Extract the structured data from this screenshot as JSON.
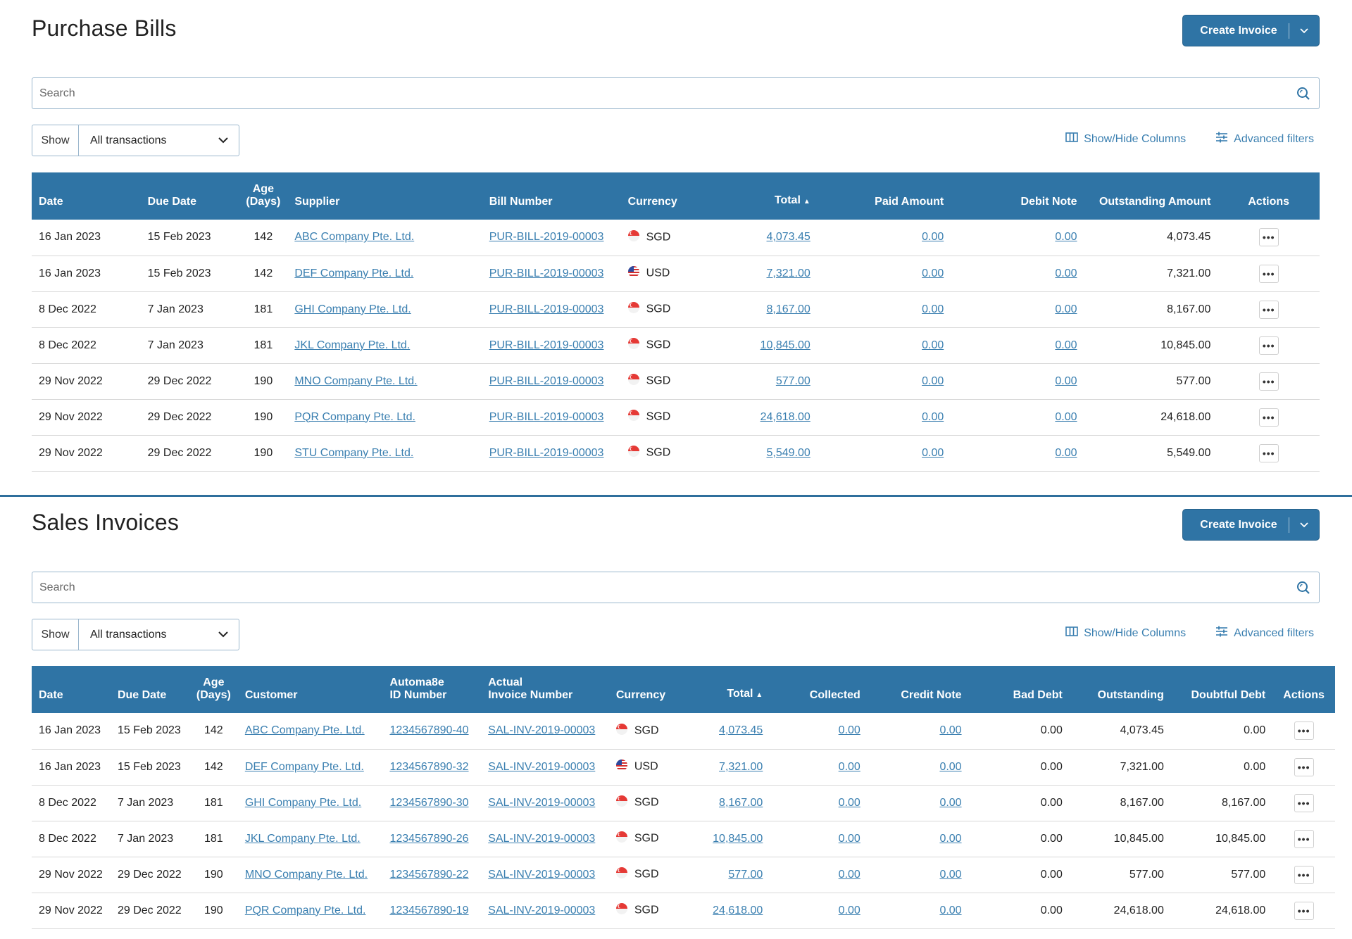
{
  "bills": {
    "title": "Purchase Bills",
    "create_label": "Create Invoice",
    "search_placeholder": "Search",
    "show_label": "Show",
    "show_value": "All transactions",
    "show_hide_label": "Show/Hide Columns",
    "advanced_label": "Advanced filters",
    "headers": {
      "date": "Date",
      "due": "Due Date",
      "age1": "Age",
      "age2": "(Days)",
      "supplier": "Supplier",
      "bill": "Bill Number",
      "currency": "Currency",
      "total": "Total",
      "paid": "Paid Amount",
      "debit": "Debit Note",
      "outstanding": "Outstanding Amount",
      "actions": "Actions"
    },
    "rows": [
      {
        "date": "16 Jan 2023",
        "due": "15 Feb 2023",
        "age": "142",
        "supplier": "ABC Company Pte. Ltd.",
        "bill": "PUR-BILL-2019-00003",
        "currency": "SGD",
        "total": "4,073.45",
        "paid": "0.00",
        "debit": "0.00",
        "outstanding": "4,073.45"
      },
      {
        "date": "16 Jan 2023",
        "due": "15 Feb 2023",
        "age": "142",
        "supplier": "DEF Company Pte. Ltd.",
        "bill": "PUR-BILL-2019-00003",
        "currency": "USD",
        "total": "7,321.00",
        "paid": "0.00",
        "debit": "0.00",
        "outstanding": "7,321.00"
      },
      {
        "date": "8 Dec 2022",
        "due": "7 Jan 2023",
        "age": "181",
        "supplier": "GHI Company Pte. Ltd.",
        "bill": "PUR-BILL-2019-00003",
        "currency": "SGD",
        "total": "8,167.00",
        "paid": "0.00",
        "debit": "0.00",
        "outstanding": "8,167.00"
      },
      {
        "date": "8 Dec 2022",
        "due": "7 Jan 2023",
        "age": "181",
        "supplier": "JKL Company Pte. Ltd.",
        "bill": "PUR-BILL-2019-00003",
        "currency": "SGD",
        "total": "10,845.00",
        "paid": "0.00",
        "debit": "0.00",
        "outstanding": "10,845.00"
      },
      {
        "date": "29 Nov 2022",
        "due": "29 Dec 2022",
        "age": "190",
        "supplier": "MNO Company Pte. Ltd.",
        "bill": "PUR-BILL-2019-00003",
        "currency": "SGD",
        "total": "577.00",
        "paid": "0.00",
        "debit": "0.00",
        "outstanding": "577.00"
      },
      {
        "date": "29 Nov 2022",
        "due": "29 Dec 2022",
        "age": "190",
        "supplier": "PQR Company Pte. Ltd.",
        "bill": "PUR-BILL-2019-00003",
        "currency": "SGD",
        "total": "24,618.00",
        "paid": "0.00",
        "debit": "0.00",
        "outstanding": "24,618.00"
      },
      {
        "date": "29 Nov 2022",
        "due": "29 Dec 2022",
        "age": "190",
        "supplier": "STU Company Pte. Ltd.",
        "bill": "PUR-BILL-2019-00003",
        "currency": "SGD",
        "total": "5,549.00",
        "paid": "0.00",
        "debit": "0.00",
        "outstanding": "5,549.00"
      }
    ]
  },
  "sales": {
    "title": "Sales Invoices",
    "create_label": "Create Invoice",
    "search_placeholder": "Search",
    "show_label": "Show",
    "show_value": "All transactions",
    "show_hide_label": "Show/Hide Columns",
    "advanced_label": "Advanced filters",
    "headers": {
      "date": "Date",
      "due": "Due Date",
      "age1": "Age",
      "age2": "(Days)",
      "customer": "Customer",
      "autoid1": "Automa8e",
      "autoid2": "ID Number",
      "actual1": "Actual",
      "actual2": "Invoice Number",
      "currency": "Currency",
      "total": "Total",
      "collected": "Collected",
      "credit": "Credit Note",
      "bad": "Bad Debt",
      "outstanding": "Outstanding",
      "doubtful": "Doubtful Debt",
      "actions": "Actions"
    },
    "rows": [
      {
        "date": "16 Jan 2023",
        "due": "15 Feb 2023",
        "age": "142",
        "customer": "ABC Company Pte. Ltd.",
        "autoid": "1234567890-40",
        "actual": "SAL-INV-2019-00003",
        "currency": "SGD",
        "total": "4,073.45",
        "collected": "0.00",
        "credit": "0.00",
        "bad": "0.00",
        "outstanding": "4,073.45",
        "doubtful": "0.00"
      },
      {
        "date": "16 Jan 2023",
        "due": "15 Feb 2023",
        "age": "142",
        "customer": "DEF Company Pte. Ltd.",
        "autoid": "1234567890-32",
        "actual": "SAL-INV-2019-00003",
        "currency": "USD",
        "total": "7,321.00",
        "collected": "0.00",
        "credit": "0.00",
        "bad": "0.00",
        "outstanding": "7,321.00",
        "doubtful": "0.00"
      },
      {
        "date": "8 Dec 2022",
        "due": "7 Jan 2023",
        "age": "181",
        "customer": "GHI Company Pte. Ltd.",
        "autoid": "1234567890-30",
        "actual": "SAL-INV-2019-00003",
        "currency": "SGD",
        "total": "8,167.00",
        "collected": "0.00",
        "credit": "0.00",
        "bad": "0.00",
        "outstanding": "8,167.00",
        "doubtful": "8,167.00"
      },
      {
        "date": "8 Dec 2022",
        "due": "7 Jan 2023",
        "age": "181",
        "customer": "JKL Company Pte. Ltd.",
        "autoid": "1234567890-26",
        "actual": "SAL-INV-2019-00003",
        "currency": "SGD",
        "total": "10,845.00",
        "collected": "0.00",
        "credit": "0.00",
        "bad": "0.00",
        "outstanding": "10,845.00",
        "doubtful": "10,845.00"
      },
      {
        "date": "29 Nov 2022",
        "due": "29 Dec 2022",
        "age": "190",
        "customer": "MNO Company Pte. Ltd.",
        "autoid": "1234567890-22",
        "actual": "SAL-INV-2019-00003",
        "currency": "SGD",
        "total": "577.00",
        "collected": "0.00",
        "credit": "0.00",
        "bad": "0.00",
        "outstanding": "577.00",
        "doubtful": "577.00"
      },
      {
        "date": "29 Nov 2022",
        "due": "29 Dec 2022",
        "age": "190",
        "customer": "PQR Company Pte. Ltd.",
        "autoid": "1234567890-19",
        "actual": "SAL-INV-2019-00003",
        "currency": "SGD",
        "total": "24,618.00",
        "collected": "0.00",
        "credit": "0.00",
        "bad": "0.00",
        "outstanding": "24,618.00",
        "doubtful": "24,618.00"
      }
    ]
  },
  "colors": {
    "accent": "#2f74a5",
    "link": "#3a7fb0",
    "border": "#9bb7cd"
  },
  "icons": {
    "search": "search-icon",
    "chevron": "chevron-down-icon",
    "columns": "columns-icon",
    "filters": "sliders-icon",
    "more": "more-icon"
  }
}
